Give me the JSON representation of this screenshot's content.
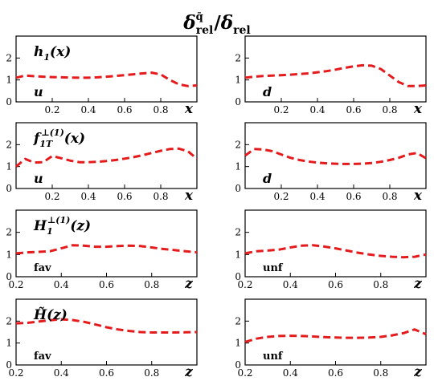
{
  "figure": {
    "title_main": "δ",
    "title_sup": "q̄",
    "title_sub": "rel",
    "title_slash": "/",
    "title_main2": "δ",
    "title_sub2": "rel"
  },
  "colors": {
    "curve": "#e41a1c",
    "axis": "#000000"
  },
  "chart_data": [
    {
      "type": "line",
      "panel_label": "h1(x)",
      "label_base": "h",
      "label_sub": "1",
      "label_tail": "(x)",
      "flavor": "u",
      "xlabel": "x",
      "xlim": [
        0.0,
        1.0
      ],
      "ylim": [
        0,
        3
      ],
      "xticks": [
        0.2,
        0.4,
        0.6,
        0.8
      ],
      "yticks": [
        0,
        1,
        2
      ],
      "x": [
        0.0,
        0.05,
        0.1,
        0.15,
        0.2,
        0.25,
        0.3,
        0.35,
        0.4,
        0.45,
        0.5,
        0.55,
        0.6,
        0.65,
        0.7,
        0.75,
        0.8,
        0.85,
        0.9,
        0.95,
        1.0
      ],
      "values": [
        1.1,
        1.2,
        1.17,
        1.15,
        1.13,
        1.12,
        1.11,
        1.1,
        1.1,
        1.12,
        1.15,
        1.18,
        1.22,
        1.26,
        1.3,
        1.33,
        1.25,
        1.0,
        0.8,
        0.72,
        0.75
      ]
    },
    {
      "type": "line",
      "panel_label": "",
      "flavor": "d",
      "xlabel": "x",
      "xlim": [
        0.0,
        1.0
      ],
      "ylim": [
        0,
        3
      ],
      "xticks": [
        0.2,
        0.4,
        0.6,
        0.8
      ],
      "yticks": [
        0,
        1,
        2
      ],
      "x": [
        0.0,
        0.05,
        0.1,
        0.15,
        0.2,
        0.25,
        0.3,
        0.35,
        0.4,
        0.45,
        0.5,
        0.55,
        0.6,
        0.65,
        0.7,
        0.75,
        0.8,
        0.85,
        0.9,
        0.95,
        1.0
      ],
      "values": [
        1.1,
        1.15,
        1.18,
        1.2,
        1.22,
        1.24,
        1.27,
        1.3,
        1.35,
        1.4,
        1.47,
        1.55,
        1.62,
        1.67,
        1.65,
        1.5,
        1.2,
        0.9,
        0.72,
        0.72,
        0.75
      ]
    },
    {
      "type": "line",
      "panel_label": "f1T⊥(1)(x)",
      "label_base": "f",
      "label_sub": "1T",
      "label_sup": "⊥(1)",
      "label_tail": "(x)",
      "flavor": "u",
      "xlabel": "x",
      "xlim": [
        0.0,
        1.0
      ],
      "ylim": [
        0,
        3
      ],
      "xticks": [
        0.2,
        0.4,
        0.6,
        0.8
      ],
      "yticks": [
        0,
        1,
        2
      ],
      "x": [
        0.0,
        0.05,
        0.1,
        0.15,
        0.2,
        0.25,
        0.3,
        0.35,
        0.4,
        0.45,
        0.5,
        0.55,
        0.6,
        0.65,
        0.7,
        0.75,
        0.8,
        0.85,
        0.9,
        0.95,
        1.0
      ],
      "values": [
        1.0,
        1.35,
        1.18,
        1.2,
        1.48,
        1.38,
        1.27,
        1.2,
        1.2,
        1.22,
        1.25,
        1.3,
        1.36,
        1.43,
        1.52,
        1.62,
        1.72,
        1.8,
        1.82,
        1.7,
        1.35
      ]
    },
    {
      "type": "line",
      "panel_label": "",
      "flavor": "d",
      "xlabel": "x",
      "xlim": [
        0.0,
        1.0
      ],
      "ylim": [
        0,
        3
      ],
      "xticks": [
        0.2,
        0.4,
        0.6,
        0.8
      ],
      "yticks": [
        0,
        1,
        2
      ],
      "x": [
        0.0,
        0.05,
        0.1,
        0.15,
        0.2,
        0.25,
        0.3,
        0.35,
        0.4,
        0.45,
        0.5,
        0.55,
        0.6,
        0.65,
        0.7,
        0.75,
        0.8,
        0.85,
        0.9,
        0.95,
        1.0
      ],
      "values": [
        1.5,
        1.8,
        1.78,
        1.7,
        1.55,
        1.4,
        1.3,
        1.23,
        1.18,
        1.15,
        1.13,
        1.12,
        1.12,
        1.13,
        1.16,
        1.22,
        1.3,
        1.4,
        1.55,
        1.62,
        1.38
      ]
    },
    {
      "type": "line",
      "panel_label": "H1⊥(1)(z)",
      "label_base": "H",
      "label_sub": "1",
      "label_sup": "⊥(1)",
      "label_tail": "(z)",
      "flavor": "fav",
      "xlabel": "z",
      "xlim": [
        0.2,
        1.0
      ],
      "ylim": [
        0,
        3
      ],
      "xticks": [
        0.2,
        0.4,
        0.6,
        0.8
      ],
      "yticks": [
        0,
        1,
        2
      ],
      "x": [
        0.2,
        0.25,
        0.3,
        0.35,
        0.4,
        0.45,
        0.5,
        0.55,
        0.6,
        0.65,
        0.7,
        0.75,
        0.8,
        0.85,
        0.9,
        0.95,
        1.0
      ],
      "values": [
        1.05,
        1.1,
        1.12,
        1.15,
        1.28,
        1.42,
        1.4,
        1.35,
        1.35,
        1.38,
        1.4,
        1.38,
        1.32,
        1.25,
        1.2,
        1.15,
        1.1
      ]
    },
    {
      "type": "line",
      "panel_label": "",
      "flavor": "unf",
      "xlabel": "z",
      "xlim": [
        0.2,
        1.0
      ],
      "ylim": [
        0,
        3
      ],
      "xticks": [
        0.2,
        0.4,
        0.6,
        0.8
      ],
      "yticks": [
        0,
        1,
        2
      ],
      "x": [
        0.2,
        0.25,
        0.3,
        0.35,
        0.4,
        0.45,
        0.5,
        0.55,
        0.6,
        0.65,
        0.7,
        0.75,
        0.8,
        0.85,
        0.9,
        0.95,
        1.0
      ],
      "values": [
        1.05,
        1.15,
        1.18,
        1.22,
        1.32,
        1.4,
        1.42,
        1.36,
        1.28,
        1.18,
        1.08,
        1.0,
        0.94,
        0.9,
        0.88,
        0.9,
        1.0
      ]
    },
    {
      "type": "line",
      "panel_label": "H̃(z)",
      "label_base": "H̃",
      "label_tail": "(z)",
      "flavor": "fav",
      "xlabel": "z",
      "xlim": [
        0.2,
        1.0
      ],
      "ylim": [
        0,
        3
      ],
      "xticks": [
        0.2,
        0.4,
        0.6,
        0.8
      ],
      "yticks": [
        0,
        1,
        2
      ],
      "x": [
        0.2,
        0.25,
        0.3,
        0.35,
        0.4,
        0.45,
        0.5,
        0.55,
        0.6,
        0.65,
        0.7,
        0.75,
        0.8,
        0.85,
        0.9,
        0.95,
        1.0
      ],
      "values": [
        1.9,
        1.92,
        1.98,
        2.04,
        2.08,
        2.05,
        1.97,
        1.85,
        1.72,
        1.62,
        1.55,
        1.5,
        1.48,
        1.48,
        1.48,
        1.49,
        1.5
      ]
    },
    {
      "type": "line",
      "panel_label": "",
      "flavor": "unf",
      "xlabel": "z",
      "xlim": [
        0.2,
        1.0
      ],
      "ylim": [
        0,
        3
      ],
      "xticks": [
        0.2,
        0.4,
        0.6,
        0.8
      ],
      "yticks": [
        0,
        1,
        2
      ],
      "x": [
        0.2,
        0.25,
        0.3,
        0.35,
        0.4,
        0.45,
        0.5,
        0.55,
        0.6,
        0.65,
        0.7,
        0.75,
        0.8,
        0.85,
        0.9,
        0.95,
        1.0
      ],
      "values": [
        1.05,
        1.2,
        1.28,
        1.32,
        1.33,
        1.32,
        1.3,
        1.27,
        1.25,
        1.24,
        1.24,
        1.25,
        1.28,
        1.35,
        1.45,
        1.62,
        1.4
      ]
    }
  ]
}
